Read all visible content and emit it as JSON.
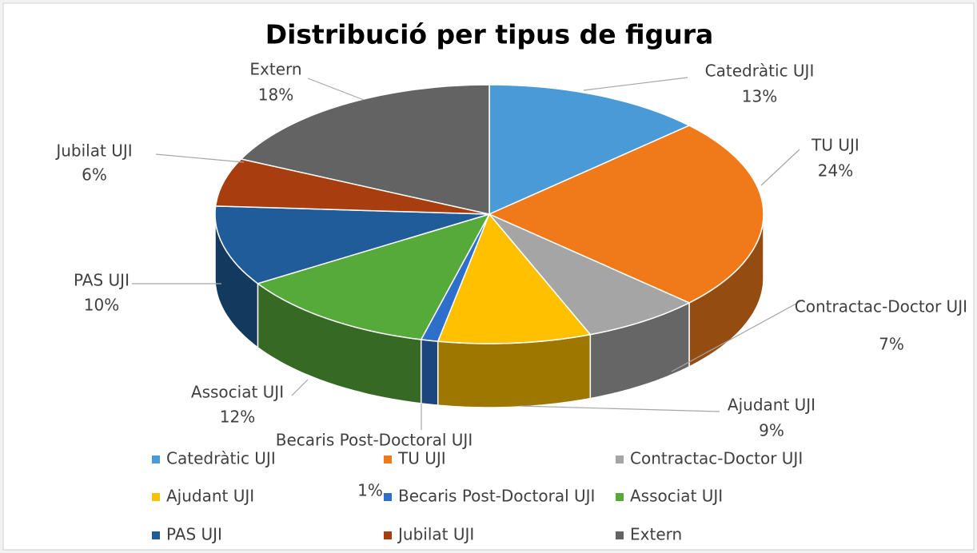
{
  "chart_data": {
    "type": "pie",
    "title": "Distribució per tipus de figura",
    "categories": [
      "Catedràtic UJI",
      "TU UJI",
      "Contractac-Doctor UJI",
      "Ajudant UJI",
      "Becaris Post-Doctoral UJI",
      "Associat UJI",
      "PAS UJI",
      "Jubilat UJI",
      "Extern"
    ],
    "values": [
      13,
      24,
      7,
      9,
      1,
      12,
      10,
      6,
      18
    ],
    "value_labels": [
      "13%",
      "24%",
      "7%",
      "9%",
      "1%",
      "12%",
      "10%",
      "6%",
      "18%"
    ],
    "colors": [
      "#4a9ad8",
      "#f07a1a",
      "#a5a5a5",
      "#ffc000",
      "#2e6fcc",
      "#56aa3a",
      "#1f5c99",
      "#a83e10",
      "#636363"
    ],
    "legend": "bottom"
  }
}
